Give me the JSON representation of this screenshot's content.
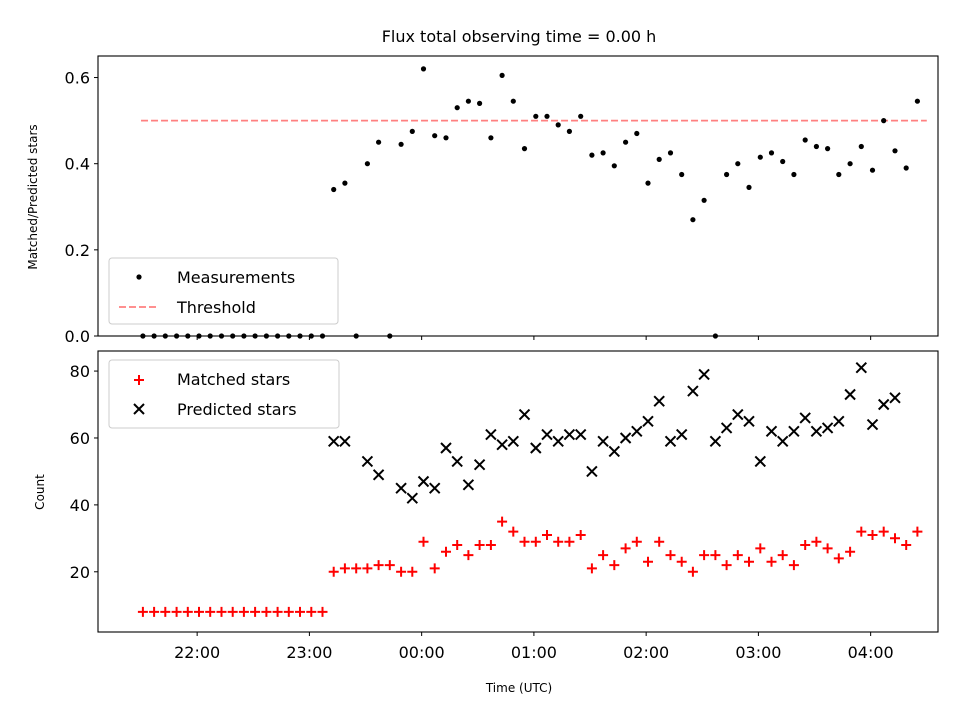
{
  "chart_data": [
    {
      "type": "scatter",
      "title": "Flux total observing time = 0.00 h",
      "xlabel": "",
      "ylabel": "Matched/Predicted stars",
      "ylim": [
        0.0,
        0.65
      ],
      "yticks": [
        0.0,
        0.2,
        0.4,
        0.6
      ],
      "ytick_labels": [
        "0.0",
        "0.2",
        "0.4",
        "0.6"
      ],
      "legend": {
        "placement": "lower-left",
        "entries": [
          "Measurements",
          "Threshold"
        ]
      },
      "threshold": {
        "name": "Threshold",
        "value": 0.5,
        "x_start": "21:30",
        "x_end": "04:30",
        "color": "#ff8080"
      },
      "series": [
        {
          "name": "Measurements",
          "color": "#000000",
          "x": [
            "21:31",
            "21:37",
            "21:43",
            "21:49",
            "21:55",
            "22:01",
            "22:07",
            "22:13",
            "22:19",
            "22:25",
            "22:31",
            "22:37",
            "22:43",
            "22:49",
            "22:55",
            "23:01",
            "23:07",
            "23:13",
            "23:19",
            "23:25",
            "23:31",
            "23:37",
            "23:43",
            "23:49",
            "23:55",
            "00:01",
            "00:07",
            "00:13",
            "00:19",
            "00:25",
            "00:31",
            "00:37",
            "00:43",
            "00:49",
            "00:55",
            "01:01",
            "01:07",
            "01:13",
            "01:19",
            "01:25",
            "01:31",
            "01:37",
            "01:43",
            "01:49",
            "01:55",
            "02:01",
            "02:07",
            "02:13",
            "02:19",
            "02:25",
            "02:31",
            "02:37",
            "02:43",
            "02:49",
            "02:55",
            "03:01",
            "03:07",
            "03:13",
            "03:19",
            "03:25",
            "03:31",
            "03:37",
            "03:43",
            "03:49",
            "03:55",
            "04:01",
            "04:07",
            "04:13",
            "04:19",
            "04:25"
          ],
          "y": [
            0,
            0,
            0,
            0,
            0,
            0,
            0,
            0,
            0,
            0,
            0,
            0,
            0,
            0,
            0,
            0,
            0,
            0.34,
            0.355,
            0,
            0.4,
            0.45,
            0,
            0.445,
            0.475,
            0.62,
            0.465,
            0.46,
            0.53,
            0.545,
            0.54,
            0.46,
            0.605,
            0.545,
            0.435,
            0.51,
            0.51,
            0.49,
            0.475,
            0.51,
            0.42,
            0.425,
            0.395,
            0.45,
            0.47,
            0.355,
            0.41,
            0.425,
            0.375,
            0.27,
            0.315,
            0,
            0.375,
            0.4,
            0.345,
            0.415,
            0.425,
            0.405,
            0.375,
            0.455,
            0.44,
            0.435,
            0.375,
            0.4,
            0.44,
            0.385,
            0.5,
            0.43,
            0.39,
            0.545
          ]
        }
      ]
    },
    {
      "type": "scatter",
      "title": "",
      "xlabel": "Time (UTC)",
      "ylabel": "Count",
      "ylim": [
        2,
        86
      ],
      "yticks": [
        20,
        40,
        60,
        80
      ],
      "ytick_labels": [
        "20",
        "40",
        "60",
        "80"
      ],
      "xticks": [
        "22:00",
        "23:00",
        "00:00",
        "01:00",
        "02:00",
        "03:00",
        "04:00"
      ],
      "legend": {
        "placement": "upper-left",
        "entries": [
          "Matched stars",
          "Predicted stars"
        ]
      },
      "series": [
        {
          "name": "Matched stars",
          "marker": "plus",
          "color": "#ff0000",
          "x": [
            "21:31",
            "21:37",
            "21:43",
            "21:49",
            "21:55",
            "22:01",
            "22:07",
            "22:13",
            "22:19",
            "22:25",
            "22:31",
            "22:37",
            "22:43",
            "22:49",
            "22:55",
            "23:01",
            "23:07",
            "23:13",
            "23:19",
            "23:25",
            "23:31",
            "23:37",
            "23:43",
            "23:49",
            "23:55",
            "00:01",
            "00:07",
            "00:13",
            "00:19",
            "00:25",
            "00:31",
            "00:37",
            "00:43",
            "00:49",
            "00:55",
            "01:01",
            "01:07",
            "01:13",
            "01:19",
            "01:25",
            "01:31",
            "01:37",
            "01:43",
            "01:49",
            "01:55",
            "02:01",
            "02:07",
            "02:13",
            "02:19",
            "02:25",
            "02:31",
            "02:37",
            "02:43",
            "02:49",
            "02:55",
            "03:01",
            "03:07",
            "03:13",
            "03:19",
            "03:25",
            "03:31",
            "03:37",
            "03:43",
            "03:49",
            "03:55",
            "04:01",
            "04:07",
            "04:13",
            "04:19",
            "04:25"
          ],
          "y": [
            8,
            8,
            8,
            8,
            8,
            8,
            8,
            8,
            8,
            8,
            8,
            8,
            8,
            8,
            8,
            8,
            8,
            20,
            21,
            21,
            21,
            22,
            22,
            20,
            20,
            29,
            21,
            26,
            28,
            25,
            28,
            28,
            35,
            32,
            29,
            29,
            31,
            29,
            29,
            31,
            21,
            25,
            22,
            27,
            29,
            23,
            29,
            25,
            23,
            20,
            25,
            25,
            22,
            25,
            23,
            27,
            23,
            25,
            22,
            28,
            29,
            27,
            24,
            26,
            32,
            31,
            32,
            30,
            28,
            32
          ]
        },
        {
          "name": "Predicted stars",
          "marker": "x",
          "color": "#000000",
          "x": [
            "23:13",
            "23:19",
            "23:31",
            "23:37",
            "23:49",
            "23:55",
            "00:01",
            "00:07",
            "00:13",
            "00:19",
            "00:25",
            "00:31",
            "00:37",
            "00:43",
            "00:49",
            "00:55",
            "01:01",
            "01:07",
            "01:13",
            "01:19",
            "01:25",
            "01:31",
            "01:37",
            "01:43",
            "01:49",
            "01:55",
            "02:01",
            "02:07",
            "02:13",
            "02:19",
            "02:25",
            "02:31",
            "02:37",
            "02:43",
            "02:49",
            "02:55",
            "03:01",
            "03:07",
            "03:13",
            "03:19",
            "03:25",
            "03:31",
            "03:37",
            "03:43",
            "03:49",
            "03:55",
            "04:01",
            "04:07",
            "04:13"
          ],
          "y": [
            59,
            59,
            53,
            49,
            45,
            42,
            47,
            45,
            57,
            53,
            46,
            52,
            61,
            58,
            59,
            67,
            57,
            61,
            59,
            61,
            61,
            50,
            59,
            56,
            60,
            62,
            65,
            71,
            59,
            61,
            74,
            79,
            59,
            63,
            67,
            65,
            53,
            62,
            59,
            62,
            66,
            62,
            63,
            65,
            73,
            81,
            64,
            70,
            72
          ]
        }
      ]
    }
  ],
  "legend_labels": {
    "top": [
      "Measurements",
      "Threshold"
    ],
    "bottom": [
      "Matched stars",
      "Predicted stars"
    ]
  }
}
